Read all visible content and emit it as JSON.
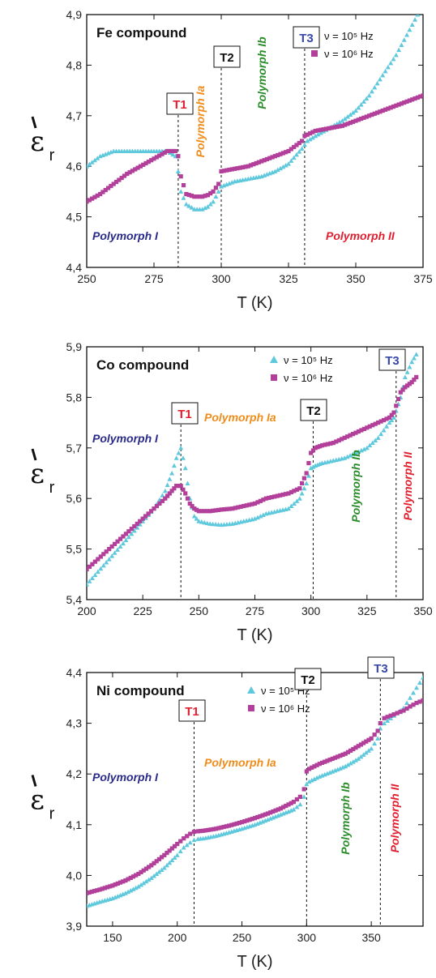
{
  "colors": {
    "series_1e5": "#5ec8dc",
    "series_1e6": "#b2409a",
    "polymorph_I": "#2a2a8a",
    "polymorph_Ia": "#f08c1a",
    "polymorph_Ib": "#2a8c2a",
    "polymorph_II": "#e02030",
    "T1": "#e02030",
    "T2": "#111111",
    "T3": "#3848a8"
  },
  "chart_data": [
    {
      "type": "scatter",
      "title": "Fe compound",
      "xlabel": "T (K)",
      "ylabel": "ε",
      "ylabel_sub": "r",
      "xlim": [
        250,
        375
      ],
      "ylim": [
        4.4,
        4.9
      ],
      "xticks": [
        "250",
        "275",
        "300",
        "325",
        "350",
        "375"
      ],
      "yticks": [
        "4,4",
        "4,5",
        "4,6",
        "4,7",
        "4,8",
        "4,9"
      ],
      "legend_position": "top-right",
      "series": [
        {
          "name": "ν = 10⁵ Hz",
          "marker": "triangle",
          "color": "#5ec8dc",
          "x": [
            250,
            255,
            260,
            265,
            270,
            275,
            280,
            283,
            284,
            285,
            287,
            290,
            293,
            295,
            297,
            299,
            300,
            305,
            310,
            315,
            320,
            325,
            330,
            332,
            335,
            340,
            345,
            350,
            355,
            360,
            365,
            370,
            373,
            375
          ],
          "y": [
            4.6,
            4.62,
            4.63,
            4.63,
            4.63,
            4.63,
            4.63,
            4.62,
            4.59,
            4.55,
            4.525,
            4.515,
            4.515,
            4.52,
            4.53,
            4.55,
            4.56,
            4.57,
            4.575,
            4.58,
            4.59,
            4.605,
            4.635,
            4.65,
            4.66,
            4.675,
            4.69,
            4.71,
            4.74,
            4.78,
            4.82,
            4.87,
            4.9,
            4.91
          ]
        },
        {
          "name": "ν = 10⁶ Hz",
          "marker": "square",
          "color": "#b2409a",
          "x": [
            250,
            255,
            260,
            265,
            270,
            275,
            280,
            283,
            284,
            285,
            287,
            290,
            293,
            295,
            297,
            299,
            300,
            305,
            310,
            315,
            320,
            325,
            330,
            331,
            333,
            335,
            340,
            345,
            350,
            355,
            360,
            365,
            370,
            375
          ],
          "y": [
            4.53,
            4.545,
            4.565,
            4.585,
            4.6,
            4.615,
            4.63,
            4.63,
            4.62,
            4.58,
            4.545,
            4.54,
            4.54,
            4.543,
            4.55,
            4.565,
            4.59,
            4.595,
            4.6,
            4.61,
            4.62,
            4.63,
            4.65,
            4.66,
            4.665,
            4.67,
            4.675,
            4.68,
            4.69,
            4.7,
            4.71,
            4.72,
            4.73,
            4.74
          ]
        }
      ],
      "transitions": [
        {
          "label": "T1",
          "x": 284,
          "color": "#e02030"
        },
        {
          "label": "T2",
          "x": 300,
          "color": "#111111"
        },
        {
          "label": "T3",
          "x": 331,
          "color": "#3848a8"
        }
      ],
      "annotations": [
        {
          "text": "Polymorph I",
          "color": "#2a2a8a",
          "rotate": false
        },
        {
          "text": "Polymorph Ia",
          "color": "#f08c1a",
          "rotate": true
        },
        {
          "text": "Polymorph Ib",
          "color": "#2a8c2a",
          "rotate": true
        },
        {
          "text": "Polymorph II",
          "color": "#e02030",
          "rotate": false
        }
      ]
    },
    {
      "type": "scatter",
      "title": "Co compound",
      "xlabel": "T (K)",
      "ylabel": "ε",
      "ylabel_sub": "r",
      "xlim": [
        200,
        350
      ],
      "ylim": [
        5.4,
        5.9
      ],
      "xticks": [
        "200",
        "225",
        "250",
        "275",
        "300",
        "325",
        "350"
      ],
      "yticks": [
        "5,4",
        "5,5",
        "5,6",
        "5,7",
        "5,8",
        "5,9"
      ],
      "legend_position": "top-right",
      "series": [
        {
          "name": "ν = 10⁵ Hz",
          "marker": "triangle",
          "color": "#5ec8dc",
          "x": [
            200,
            205,
            210,
            215,
            220,
            225,
            230,
            235,
            238,
            240,
            242,
            244,
            246,
            248,
            250,
            255,
            260,
            265,
            270,
            275,
            280,
            285,
            290,
            295,
            298,
            300,
            302,
            305,
            310,
            315,
            320,
            325,
            330,
            335,
            337,
            340,
            342,
            345,
            347
          ],
          "y": [
            5.43,
            5.455,
            5.48,
            5.505,
            5.53,
            5.555,
            5.58,
            5.615,
            5.65,
            5.68,
            5.7,
            5.66,
            5.6,
            5.565,
            5.555,
            5.55,
            5.548,
            5.55,
            5.555,
            5.56,
            5.57,
            5.575,
            5.58,
            5.6,
            5.63,
            5.66,
            5.665,
            5.67,
            5.675,
            5.68,
            5.69,
            5.7,
            5.72,
            5.75,
            5.76,
            5.8,
            5.84,
            5.87,
            5.885
          ]
        },
        {
          "name": "ν = 10⁶ Hz",
          "marker": "square",
          "color": "#b2409a",
          "x": [
            200,
            205,
            210,
            215,
            220,
            225,
            230,
            235,
            238,
            240,
            242,
            244,
            246,
            248,
            250,
            255,
            260,
            265,
            270,
            275,
            280,
            285,
            290,
            295,
            298,
            300,
            302,
            305,
            310,
            315,
            320,
            325,
            330,
            335,
            337,
            340,
            342,
            345,
            347
          ],
          "y": [
            5.46,
            5.48,
            5.5,
            5.52,
            5.54,
            5.56,
            5.58,
            5.6,
            5.615,
            5.625,
            5.625,
            5.61,
            5.59,
            5.58,
            5.575,
            5.575,
            5.578,
            5.58,
            5.585,
            5.59,
            5.6,
            5.605,
            5.61,
            5.62,
            5.65,
            5.69,
            5.7,
            5.705,
            5.71,
            5.72,
            5.73,
            5.74,
            5.75,
            5.76,
            5.77,
            5.81,
            5.82,
            5.83,
            5.84
          ]
        }
      ],
      "transitions": [
        {
          "label": "T1",
          "x": 242,
          "color": "#e02030"
        },
        {
          "label": "T2",
          "x": 301,
          "color": "#111111"
        },
        {
          "label": "T3",
          "x": 338,
          "color": "#3848a8"
        }
      ],
      "annotations": [
        {
          "text": "Polymorph I",
          "color": "#2a2a8a",
          "rotate": false
        },
        {
          "text": "Polymorph Ia",
          "color": "#f08c1a",
          "rotate": false
        },
        {
          "text": "Polymorph Ib",
          "color": "#2a8c2a",
          "rotate": true
        },
        {
          "text": "Polymorph II",
          "color": "#e02030",
          "rotate": true
        }
      ]
    },
    {
      "type": "scatter",
      "title": "Ni compound",
      "xlabel": "T (K)",
      "ylabel": "ε",
      "ylabel_sub": "r",
      "xlim": [
        130,
        390
      ],
      "ylim": [
        3.9,
        4.4
      ],
      "xticks": [
        "150",
        "200",
        "250",
        "300",
        "350"
      ],
      "xtick_values": [
        150,
        200,
        250,
        300,
        350
      ],
      "yticks": [
        "3,9",
        "4,0",
        "4,1",
        "4,2",
        "4,3",
        "4,4"
      ],
      "legend_position": "top-right",
      "series": [
        {
          "name": "ν = 10⁵ Hz",
          "marker": "triangle",
          "color": "#5ec8dc",
          "x": [
            130,
            140,
            150,
            160,
            170,
            180,
            190,
            200,
            205,
            210,
            213,
            216,
            220,
            230,
            240,
            250,
            260,
            270,
            280,
            290,
            295,
            298,
            300,
            302,
            310,
            320,
            330,
            340,
            350,
            355,
            357,
            360,
            365,
            370,
            375,
            380,
            385,
            390
          ],
          "y": [
            3.94,
            3.948,
            3.955,
            3.965,
            3.978,
            3.995,
            4.015,
            4.04,
            4.055,
            4.065,
            4.07,
            4.072,
            4.073,
            4.078,
            4.085,
            4.092,
            4.1,
            4.11,
            4.12,
            4.13,
            4.14,
            4.155,
            4.18,
            4.185,
            4.195,
            4.205,
            4.215,
            4.23,
            4.25,
            4.27,
            4.29,
            4.3,
            4.31,
            4.32,
            4.33,
            4.35,
            4.37,
            4.39
          ]
        },
        {
          "name": "ν = 10⁶ Hz",
          "marker": "square",
          "color": "#b2409a",
          "x": [
            130,
            140,
            150,
            160,
            170,
            180,
            190,
            200,
            205,
            210,
            213,
            216,
            220,
            230,
            240,
            250,
            260,
            270,
            280,
            290,
            295,
            298,
            300,
            302,
            310,
            320,
            330,
            340,
            350,
            355,
            357,
            360,
            365,
            370,
            375,
            380,
            385,
            390
          ],
          "y": [
            3.965,
            3.972,
            3.98,
            3.99,
            4.003,
            4.02,
            4.04,
            4.062,
            4.073,
            4.082,
            4.086,
            4.087,
            4.088,
            4.092,
            4.098,
            4.105,
            4.113,
            4.122,
            4.132,
            4.145,
            4.155,
            4.17,
            4.205,
            4.21,
            4.22,
            4.23,
            4.24,
            4.255,
            4.27,
            4.285,
            4.3,
            4.31,
            4.315,
            4.32,
            4.325,
            4.333,
            4.34,
            4.345
          ]
        }
      ],
      "transitions": [
        {
          "label": "T1",
          "x": 213,
          "color": "#e02030"
        },
        {
          "label": "T2",
          "x": 300,
          "color": "#111111"
        },
        {
          "label": "T3",
          "x": 357,
          "color": "#3848a8"
        }
      ],
      "annotations": [
        {
          "text": "Polymorph I",
          "color": "#2a2a8a",
          "rotate": false
        },
        {
          "text": "Polymorph Ia",
          "color": "#f08c1a",
          "rotate": false
        },
        {
          "text": "Polymorph Ib",
          "color": "#2a8c2a",
          "rotate": true
        },
        {
          "text": "Polymorph II",
          "color": "#e02030",
          "rotate": true
        }
      ]
    }
  ]
}
